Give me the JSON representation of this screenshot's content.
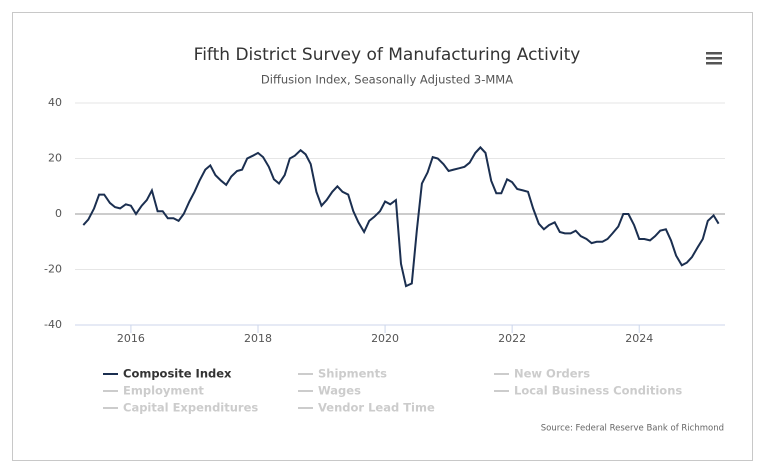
{
  "chart_data": {
    "type": "line",
    "title": "Fifth District Survey of Manufacturing Activity",
    "subtitle": "Diffusion Index, Seasonally Adjusted 3-MMA",
    "source": "Source: Federal Reserve Bank of Richmond",
    "x": [
      2015.25,
      2015.33,
      2015.42,
      2015.5,
      2015.58,
      2015.67,
      2015.75,
      2015.83,
      2015.92,
      2016,
      2016.08,
      2016.17,
      2016.25,
      2016.33,
      2016.42,
      2016.5,
      2016.58,
      2016.67,
      2016.75,
      2016.83,
      2016.92,
      2017,
      2017.08,
      2017.17,
      2017.25,
      2017.33,
      2017.42,
      2017.5,
      2017.58,
      2017.67,
      2017.75,
      2017.83,
      2017.92,
      2018,
      2018.08,
      2018.17,
      2018.25,
      2018.33,
      2018.42,
      2018.5,
      2018.58,
      2018.67,
      2018.75,
      2018.83,
      2018.92,
      2019,
      2019.08,
      2019.17,
      2019.25,
      2019.33,
      2019.42,
      2019.5,
      2019.58,
      2019.67,
      2019.75,
      2019.83,
      2019.92,
      2020,
      2020.08,
      2020.17,
      2020.25,
      2020.33,
      2020.42,
      2020.5,
      2020.58,
      2020.67,
      2020.75,
      2020.83,
      2020.92,
      2021,
      2021.08,
      2021.17,
      2021.25,
      2021.33,
      2021.42,
      2021.5,
      2021.58,
      2021.67,
      2021.75,
      2021.83,
      2021.92,
      2022,
      2022.08,
      2022.17,
      2022.25,
      2022.33,
      2022.42,
      2022.5,
      2022.58,
      2022.67,
      2022.75,
      2022.83,
      2022.92,
      2023,
      2023.08,
      2023.17,
      2023.25,
      2023.33,
      2023.42,
      2023.5,
      2023.58,
      2023.67,
      2023.75,
      2023.83,
      2023.92,
      2024,
      2024.08,
      2024.17,
      2024.25,
      2024.33,
      2024.42,
      2024.5,
      2024.58,
      2024.67,
      2024.75,
      2024.83,
      2024.92,
      2025,
      2025.08,
      2025.17,
      2025.25
    ],
    "series": [
      {
        "name": "Composite Index",
        "color": "#1b2f50",
        "values": [
          -4,
          -2,
          2,
          7,
          7,
          4,
          2.5,
          2,
          3.5,
          3,
          0,
          3,
          5,
          8.5,
          1,
          1,
          -1.5,
          -1.5,
          -2.5,
          0,
          4.5,
          8,
          12,
          16,
          17.5,
          14,
          12,
          10.5,
          13.5,
          15.5,
          16,
          20,
          21,
          22,
          20.5,
          17,
          12.5,
          11,
          14,
          20,
          21,
          23,
          21.5,
          18,
          8,
          3,
          5,
          8,
          10,
          8,
          7,
          1,
          -3,
          -6.5,
          -2.5,
          -1,
          1,
          4.5,
          3.5,
          5,
          -18,
          -26,
          -25,
          -6,
          11,
          15,
          20.5,
          20,
          18,
          15.5,
          16,
          16.5,
          17,
          18.5,
          22,
          24,
          22,
          12,
          7.5,
          7.5,
          12.5,
          11.5,
          9,
          8.5,
          8,
          2,
          -3.5,
          -5.5,
          -4,
          -3,
          -6.5,
          -7,
          -7,
          -6,
          -8,
          -9,
          -10.5,
          -10,
          -10,
          -9,
          -7,
          -4.5,
          0,
          0,
          -4,
          -9,
          -9,
          -9.5,
          -8,
          -6,
          -5.5,
          -9.5,
          -15,
          -18.5,
          -17.5,
          -15.5,
          -12,
          -9,
          -2.5,
          -0.5,
          -3.5
        ]
      }
    ],
    "inactive_series": [
      "Shipments",
      "New Orders",
      "Employment",
      "Wages",
      "Local Business Conditions",
      "Capital Expenditures",
      "Vendor Lead Time"
    ],
    "inactive_color": "#cccccc",
    "xlim": [
      2015.12,
      2025.35
    ],
    "xticks": [
      2016,
      2018,
      2020,
      2022,
      2024
    ],
    "ylim": [
      -40,
      40
    ],
    "yticks": [
      -40,
      -20,
      0,
      20,
      40
    ],
    "grid": true
  }
}
